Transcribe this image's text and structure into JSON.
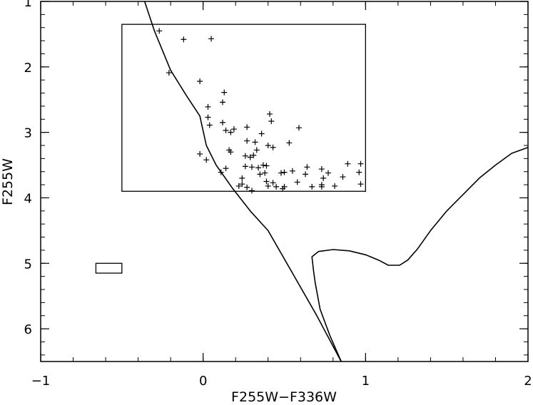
{
  "chart_data": {
    "type": "scatter",
    "title": "",
    "xlabel": "F255W−F336W",
    "ylabel": "F255W",
    "xlim": [
      -1,
      2
    ],
    "ylim": [
      6.5,
      1
    ],
    "y_inverted": true,
    "grid": false,
    "x_ticks": [
      -1,
      0,
      1,
      2
    ],
    "x_tick_labels": [
      "−1",
      "0",
      "1",
      "2"
    ],
    "y_ticks": [
      1,
      2,
      3,
      4,
      5,
      6
    ],
    "y_tick_labels": [
      "1",
      "2",
      "3",
      "4",
      "5",
      "6"
    ],
    "series": [
      {
        "marker": "plus",
        "points": [
          [
            -0.27,
            1.45
          ],
          [
            -0.12,
            1.58
          ],
          [
            0.05,
            1.57
          ],
          [
            -0.21,
            2.09
          ],
          [
            -0.02,
            2.22
          ],
          [
            0.13,
            2.39
          ],
          [
            0.12,
            2.54
          ],
          [
            0.03,
            2.61
          ],
          [
            0.03,
            2.77
          ],
          [
            0.04,
            2.89
          ],
          [
            0.12,
            2.85
          ],
          [
            0.14,
            2.97
          ],
          [
            0.17,
            3.0
          ],
          [
            0.19,
            2.95
          ],
          [
            0.27,
            2.92
          ],
          [
            0.41,
            2.72
          ],
          [
            0.42,
            2.83
          ],
          [
            0.59,
            2.93
          ],
          [
            0.36,
            3.02
          ],
          [
            0.27,
            3.13
          ],
          [
            0.32,
            3.15
          ],
          [
            0.4,
            3.2
          ],
          [
            0.43,
            3.23
          ],
          [
            0.53,
            3.16
          ],
          [
            0.16,
            3.27
          ],
          [
            0.17,
            3.3
          ],
          [
            0.33,
            3.27
          ],
          [
            -0.02,
            3.33
          ],
          [
            0.02,
            3.42
          ],
          [
            0.26,
            3.36
          ],
          [
            0.29,
            3.38
          ],
          [
            0.31,
            3.35
          ],
          [
            0.14,
            3.55
          ],
          [
            0.26,
            3.52
          ],
          [
            0.3,
            3.53
          ],
          [
            0.34,
            3.54
          ],
          [
            0.37,
            3.5
          ],
          [
            0.39,
            3.51
          ],
          [
            0.11,
            3.61
          ],
          [
            0.35,
            3.64
          ],
          [
            0.38,
            3.62
          ],
          [
            0.48,
            3.62
          ],
          [
            0.5,
            3.61
          ],
          [
            0.55,
            3.59
          ],
          [
            0.64,
            3.53
          ],
          [
            0.63,
            3.64
          ],
          [
            0.73,
            3.56
          ],
          [
            0.89,
            3.48
          ],
          [
            0.97,
            3.48
          ],
          [
            0.96,
            3.61
          ],
          [
            0.77,
            3.62
          ],
          [
            0.74,
            3.7
          ],
          [
            0.24,
            3.7
          ],
          [
            0.86,
            3.68
          ],
          [
            0.24,
            3.79
          ],
          [
            0.22,
            3.82
          ],
          [
            0.27,
            3.84
          ],
          [
            0.3,
            3.89
          ],
          [
            0.39,
            3.75
          ],
          [
            0.4,
            3.82
          ],
          [
            0.43,
            3.77
          ],
          [
            0.45,
            3.83
          ],
          [
            0.49,
            3.86
          ],
          [
            0.5,
            3.83
          ],
          [
            0.58,
            3.76
          ],
          [
            0.67,
            3.83
          ],
          [
            0.73,
            3.8
          ],
          [
            0.73,
            3.83
          ],
          [
            0.81,
            3.82
          ],
          [
            0.97,
            3.79
          ]
        ]
      },
      {
        "type": "line",
        "points": [
          [
            -0.36,
            1.0
          ],
          [
            -0.3,
            1.45
          ],
          [
            -0.2,
            2.05
          ],
          [
            -0.1,
            2.45
          ],
          [
            -0.02,
            2.75
          ],
          [
            0.02,
            3.2
          ],
          [
            0.08,
            3.5
          ],
          [
            0.18,
            3.85
          ],
          [
            0.29,
            4.2
          ],
          [
            0.4,
            4.5
          ],
          [
            0.55,
            5.15
          ],
          [
            0.7,
            5.8
          ],
          [
            0.85,
            6.5
          ]
        ]
      },
      {
        "type": "line",
        "points": [
          [
            0.85,
            6.5
          ],
          [
            0.78,
            6.1
          ],
          [
            0.72,
            5.7
          ],
          [
            0.69,
            5.3
          ],
          [
            0.68,
            5.12
          ],
          [
            0.67,
            4.9
          ],
          [
            0.71,
            4.82
          ],
          [
            0.8,
            4.79
          ],
          [
            0.9,
            4.81
          ],
          [
            1.0,
            4.87
          ],
          [
            1.08,
            4.95
          ],
          [
            1.14,
            5.03
          ],
          [
            1.21,
            5.03
          ],
          [
            1.26,
            4.95
          ],
          [
            1.32,
            4.78
          ],
          [
            1.4,
            4.5
          ],
          [
            1.5,
            4.2
          ],
          [
            1.6,
            3.95
          ],
          [
            1.7,
            3.7
          ],
          [
            1.8,
            3.5
          ],
          [
            1.9,
            3.32
          ],
          [
            2.0,
            3.23
          ]
        ]
      }
    ],
    "boxes": [
      {
        "x0": -0.5,
        "x1": 1.0,
        "y0": 1.35,
        "y1": 3.9
      },
      {
        "x0": -0.66,
        "x1": -0.5,
        "y0": 5.0,
        "y1": 5.15
      }
    ]
  }
}
